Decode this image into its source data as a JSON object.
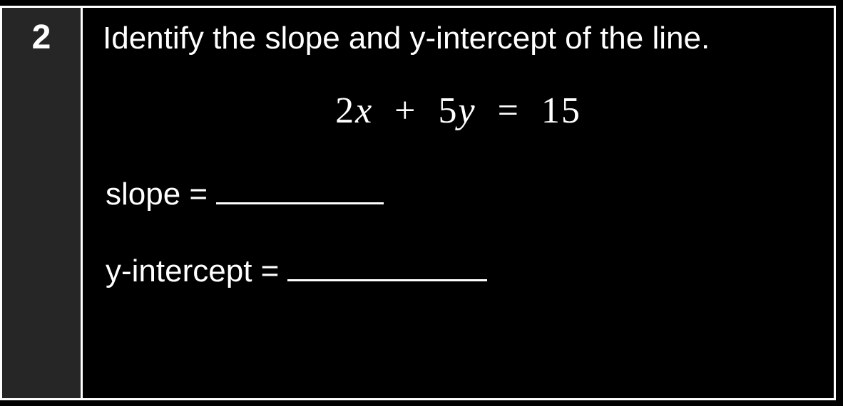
{
  "question": {
    "number": "2",
    "prompt": "Identify the slope and y-intercept of the line.",
    "equation_parts": {
      "coeff1": "2",
      "var1": "x",
      "op1": "+",
      "coeff2": "5",
      "var2": "y",
      "eq": "=",
      "rhs": "15"
    },
    "answers": {
      "slope_label": "slope =",
      "slope_value": "",
      "yint_label": "y-intercept =",
      "yint_value": ""
    }
  },
  "style": {
    "background_color": "#000000",
    "sidebar_color": "#262626",
    "border_color": "#ffffff",
    "text_color": "#ffffff",
    "number_fontsize": 48,
    "prompt_fontsize": 44,
    "equation_fontsize": 52,
    "answer_fontsize": 44,
    "blank_width_short": 235,
    "blank_width_long": 280
  }
}
